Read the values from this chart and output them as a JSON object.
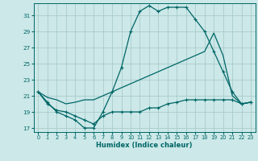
{
  "xlabel": "Humidex (Indice chaleur)",
  "bg_color": "#cce8e8",
  "grid_color": "#aacccc",
  "line_color": "#006666",
  "xlim": [
    -0.5,
    23.5
  ],
  "ylim": [
    16.5,
    32.5
  ],
  "yticks": [
    17,
    19,
    21,
    23,
    25,
    27,
    29,
    31
  ],
  "xticks": [
    0,
    1,
    2,
    3,
    4,
    5,
    6,
    7,
    8,
    9,
    10,
    11,
    12,
    13,
    14,
    15,
    16,
    17,
    18,
    19,
    20,
    21,
    22,
    23
  ],
  "line1_x": [
    0,
    1,
    2,
    3,
    4,
    5,
    6,
    7,
    8,
    9,
    10,
    11,
    12,
    13,
    14,
    15,
    16,
    17,
    18,
    19,
    20,
    21,
    22,
    23
  ],
  "line1_y": [
    21.5,
    20.2,
    19.0,
    18.5,
    18.0,
    17.0,
    17.0,
    19.0,
    21.5,
    24.5,
    29.0,
    31.5,
    32.2,
    31.5,
    32.0,
    32.0,
    32.0,
    30.5,
    29.0,
    26.5,
    24.0,
    21.5,
    20.0,
    20.2
  ],
  "line2_x": [
    0,
    1,
    2,
    3,
    4,
    5,
    6,
    7,
    8,
    9,
    10,
    11,
    12,
    13,
    14,
    15,
    16,
    17,
    18,
    19,
    20,
    21,
    22,
    23
  ],
  "line2_y": [
    21.5,
    20.8,
    20.5,
    20.0,
    20.2,
    20.5,
    20.5,
    21.0,
    21.5,
    22.0,
    22.5,
    23.0,
    23.5,
    24.0,
    24.5,
    25.0,
    25.5,
    26.0,
    26.5,
    28.8,
    26.0,
    21.0,
    20.0,
    20.2
  ],
  "line3_x": [
    0,
    1,
    2,
    3,
    4,
    5,
    6,
    7,
    8,
    9,
    10,
    11,
    12,
    13,
    14,
    15,
    16,
    17,
    18,
    19,
    20,
    21,
    22,
    23
  ],
  "line3_y": [
    21.5,
    20.0,
    19.2,
    19.0,
    18.5,
    18.0,
    17.5,
    18.5,
    19.0,
    19.0,
    19.0,
    19.0,
    19.5,
    19.5,
    20.0,
    20.2,
    20.5,
    20.5,
    20.5,
    20.5,
    20.5,
    20.5,
    20.0,
    20.2
  ]
}
